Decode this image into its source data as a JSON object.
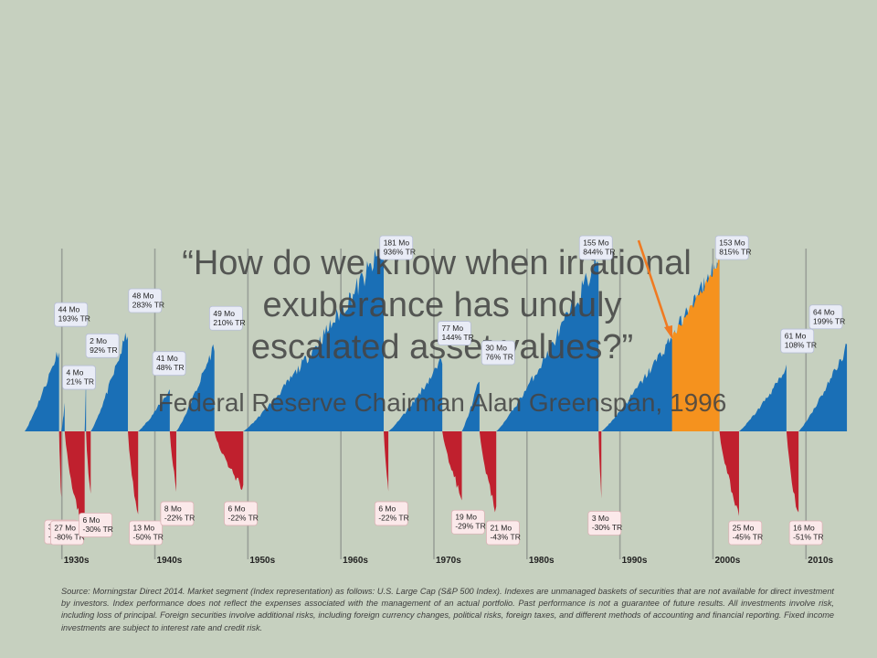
{
  "quote": {
    "lines": [
      "“How do we know when irrational",
      "exuberance has unduly",
      "escalated asset values?”",
      "Federal Reserve Chairman Alan Greenspan, 1996"
    ]
  },
  "source_note": "Source: Morningstar Direct 2014. Market segment (Index representation) as follows: U.S. Large Cap (S&P 500 Index). Indexes are unmanaged baskets of securities that are not available for direct investment by investors. Index performance does not reflect the expenses associated with the management of an actual portfolio. Past performance is not a guarantee of future results. All investments involve risk, including loss of principal. Foreign securities involve additional risks, including foreign currency changes, political risks, foreign taxes, and different methods of accounting and financial reporting. Fixed income investments are subject to interest rate and credit risk.",
  "colors": {
    "background": "#c6d0bf",
    "bull": "#1a6fb6",
    "bear": "#c0202e",
    "highlight": "#f5921e",
    "arrow": "#f07a22"
  },
  "chart_data": {
    "type": "area",
    "title": "",
    "xlabel": "",
    "ylabel": "",
    "x_range": [
      1926,
      2014
    ],
    "grid": true,
    "categories": [
      "1930s",
      "1940s",
      "1950s",
      "1960s",
      "1970s",
      "1980s",
      "1990s",
      "2000s",
      "2010s"
    ],
    "markets": [
      {
        "kind": "bull",
        "months": 44,
        "tr": 193,
        "labels": [
          "44 Mo",
          "193% TR"
        ]
      },
      {
        "kind": "bear",
        "months": 3,
        "tr": -33,
        "labels": [
          "3 Mo",
          "-33% TR"
        ]
      },
      {
        "kind": "bull",
        "months": 4,
        "tr": 21,
        "labels": [
          "4 Mo",
          "21% TR"
        ]
      },
      {
        "kind": "bear",
        "months": 27,
        "tr": -80,
        "labels": [
          "27 Mo",
          "-80% TR"
        ]
      },
      {
        "kind": "bull",
        "months": 2,
        "tr": 92,
        "labels": [
          "2 Mo",
          "92% TR"
        ]
      },
      {
        "kind": "bear",
        "months": 6,
        "tr": -30,
        "labels": [
          "6 Mo",
          "-30% TR"
        ]
      },
      {
        "kind": "bull",
        "months": 48,
        "tr": 283,
        "labels": [
          "48 Mo",
          "283% TR"
        ]
      },
      {
        "kind": "bear",
        "months": 13,
        "tr": -50,
        "labels": [
          "13 Mo",
          "-50% TR"
        ]
      },
      {
        "kind": "bull",
        "months": 41,
        "tr": 48,
        "labels": [
          "41 Mo",
          "48% TR"
        ]
      },
      {
        "kind": "bear",
        "months": 8,
        "tr": -22,
        "labels": [
          "8 Mo",
          "-22% TR"
        ]
      },
      {
        "kind": "bull",
        "months": 49,
        "tr": 210,
        "labels": [
          "49 Mo",
          "210% TR"
        ]
      },
      {
        "kind": "bear",
        "months": 6,
        "tr": -22,
        "labels": [
          "6 Mo",
          "-22% TR"
        ]
      },
      {
        "kind": "bull",
        "months": 181,
        "tr": 936,
        "labels": [
          "181 Mo",
          "936% TR"
        ]
      },
      {
        "kind": "bear",
        "months": 6,
        "tr": -22,
        "labels": [
          "6 Mo",
          "-22% TR"
        ]
      },
      {
        "kind": "bull",
        "months": 77,
        "tr": 144,
        "labels": [
          "77 Mo",
          "144% TR"
        ]
      },
      {
        "kind": "bear",
        "months": 19,
        "tr": -29,
        "labels": [
          "19 Mo",
          "-29% TR"
        ]
      },
      {
        "kind": "bull",
        "months": 30,
        "tr": 76,
        "labels": [
          "30 Mo",
          "76% TR"
        ]
      },
      {
        "kind": "bear",
        "months": 21,
        "tr": -43,
        "labels": [
          "21 Mo",
          "-43% TR"
        ]
      },
      {
        "kind": "bull",
        "months": 155,
        "tr": 844,
        "labels": [
          "155 Mo",
          "844% TR"
        ]
      },
      {
        "kind": "bear",
        "months": 3,
        "tr": -30,
        "labels": [
          "3 Mo",
          "-30% TR"
        ]
      },
      {
        "kind": "bull",
        "months": 153,
        "tr": 815,
        "labels": [
          "153 Mo",
          "815% TR"
        ]
      },
      {
        "kind": "bear",
        "months": 25,
        "tr": -45,
        "labels": [
          "25 Mo",
          "-45% TR"
        ]
      },
      {
        "kind": "bull",
        "months": 61,
        "tr": 108,
        "labels": [
          "61 Mo",
          "108% TR"
        ]
      },
      {
        "kind": "bear",
        "months": 16,
        "tr": -51,
        "labels": [
          "16 Mo",
          "-51% TR"
        ]
      },
      {
        "kind": "bull",
        "months": 64,
        "tr": 199,
        "labels": [
          "64 Mo",
          "199% TR"
        ]
      }
    ]
  }
}
